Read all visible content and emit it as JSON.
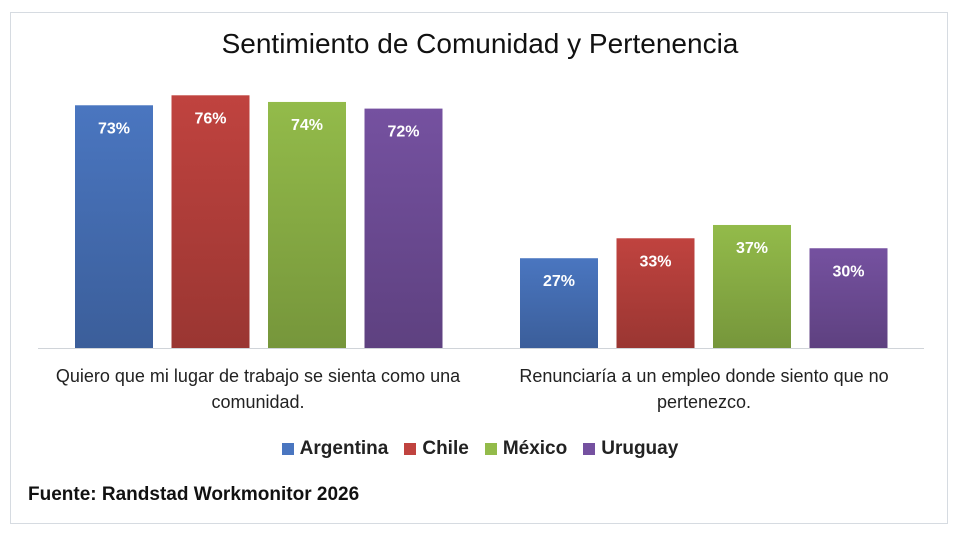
{
  "chart_data": {
    "type": "bar",
    "title": "Sentimiento de Comunidad y Pertenencia",
    "categories": [
      "Quiero que mi lugar de trabajo se sienta como una comunidad.",
      "Renunciaría a un empleo donde siento que no pertenezco."
    ],
    "series": [
      {
        "name": "Argentina",
        "color": "#4a76c0",
        "values": [
          73,
          27
        ],
        "labels": [
          "73%",
          "27%"
        ]
      },
      {
        "name": "Chile",
        "color": "#c0433f",
        "values": [
          76,
          33
        ],
        "labels": [
          "76%",
          "33%"
        ]
      },
      {
        "name": "México",
        "color": "#93bb4a",
        "values": [
          74,
          37
        ],
        "labels": [
          "74%",
          "37%"
        ]
      },
      {
        "name": "Uruguay",
        "color": "#7551a0",
        "values": [
          72,
          30
        ],
        "labels": [
          "72%",
          "30%"
        ]
      }
    ],
    "ylim": [
      0,
      80
    ],
    "grid": false,
    "legend_position": "bottom",
    "xlabel": "",
    "ylabel": ""
  },
  "footer": {
    "source": "Fuente: Randstad Workmonitor 2026"
  }
}
